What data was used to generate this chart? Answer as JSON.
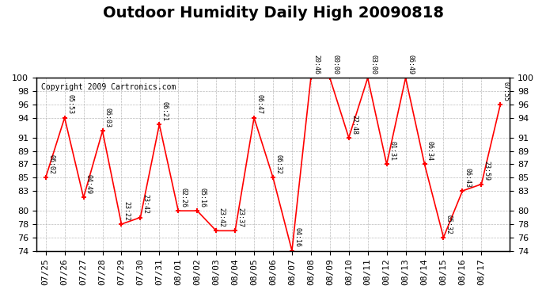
{
  "title": "Outdoor Humidity Daily High 20090818",
  "copyright": "Copyright 2009 Cartronics.com",
  "ylabel_right": "",
  "ylim": [
    74,
    100
  ],
  "yticks": [
    74,
    76,
    78,
    80,
    83,
    85,
    87,
    89,
    91,
    94,
    96,
    98,
    100
  ],
  "background_color": "#ffffff",
  "plot_bg_color": "#ffffff",
  "grid_color": "#aaaaaa",
  "line_color": "#ff0000",
  "marker_color": "#ff0000",
  "points": [
    {
      "x": 0,
      "date": "07/25",
      "value": 85,
      "label": "06:02"
    },
    {
      "x": 1,
      "date": "07/26",
      "value": 94,
      "label": "05:53"
    },
    {
      "x": 2,
      "date": "07/27",
      "value": 82,
      "label": "04:49"
    },
    {
      "x": 3,
      "date": "07/28",
      "value": 92,
      "label": "06:03"
    },
    {
      "x": 4,
      "date": "07/29",
      "value": 78,
      "label": "23:22"
    },
    {
      "x": 5,
      "date": "07/30",
      "value": 79,
      "label": "23:42"
    },
    {
      "x": 6,
      "date": "07/31",
      "value": 93,
      "label": "06:21"
    },
    {
      "x": 7,
      "date": "08/01",
      "value": 80,
      "label": "02:26"
    },
    {
      "x": 8,
      "date": "08/02",
      "value": 80,
      "label": "05:16"
    },
    {
      "x": 9,
      "date": "08/03",
      "value": 77,
      "label": "23:42"
    },
    {
      "x": 10,
      "date": "08/04",
      "value": 77,
      "label": "23:37"
    },
    {
      "x": 11,
      "date": "08/05",
      "value": 94,
      "label": "06:47"
    },
    {
      "x": 12,
      "date": "08/06",
      "value": 85,
      "label": "06:32"
    },
    {
      "x": 13,
      "date": "08/07",
      "value": 74,
      "label": "04:16"
    },
    {
      "x": 14,
      "date": "08/07",
      "value": 100,
      "label": "20:46"
    },
    {
      "x": 15,
      "date": "08/08",
      "value": 100,
      "label": "00:00"
    },
    {
      "x": 16,
      "date": "08/09",
      "value": 91,
      "label": "22:48"
    },
    {
      "x": 17,
      "date": "08/10",
      "value": 100,
      "label": "03:00"
    },
    {
      "x": 18,
      "date": "08/11",
      "value": 87,
      "label": "01:31"
    },
    {
      "x": 19,
      "date": "08/12",
      "value": 100,
      "label": "06:49"
    },
    {
      "x": 20,
      "date": "08/13",
      "value": 87,
      "label": "06:34"
    },
    {
      "x": 21,
      "date": "08/14",
      "value": 76,
      "label": "05:32"
    },
    {
      "x": 22,
      "date": "08/15",
      "value": 83,
      "label": "06:43"
    },
    {
      "x": 23,
      "date": "08/16",
      "value": 84,
      "label": "23:59"
    },
    {
      "x": 24,
      "date": "08/17",
      "value": 96,
      "label": "07:55"
    }
  ],
  "x_dates": [
    "07/25",
    "07/26",
    "07/27",
    "07/28",
    "07/29",
    "07/30",
    "07/31",
    "08/01",
    "08/02",
    "08/03",
    "08/04",
    "08/05",
    "08/06",
    "08/07",
    "08/08",
    "08/09",
    "08/10",
    "08/11",
    "08/12",
    "08/13",
    "08/14",
    "08/15",
    "08/16",
    "08/17"
  ],
  "title_fontsize": 14,
  "label_fontsize": 7,
  "tick_fontsize": 8
}
